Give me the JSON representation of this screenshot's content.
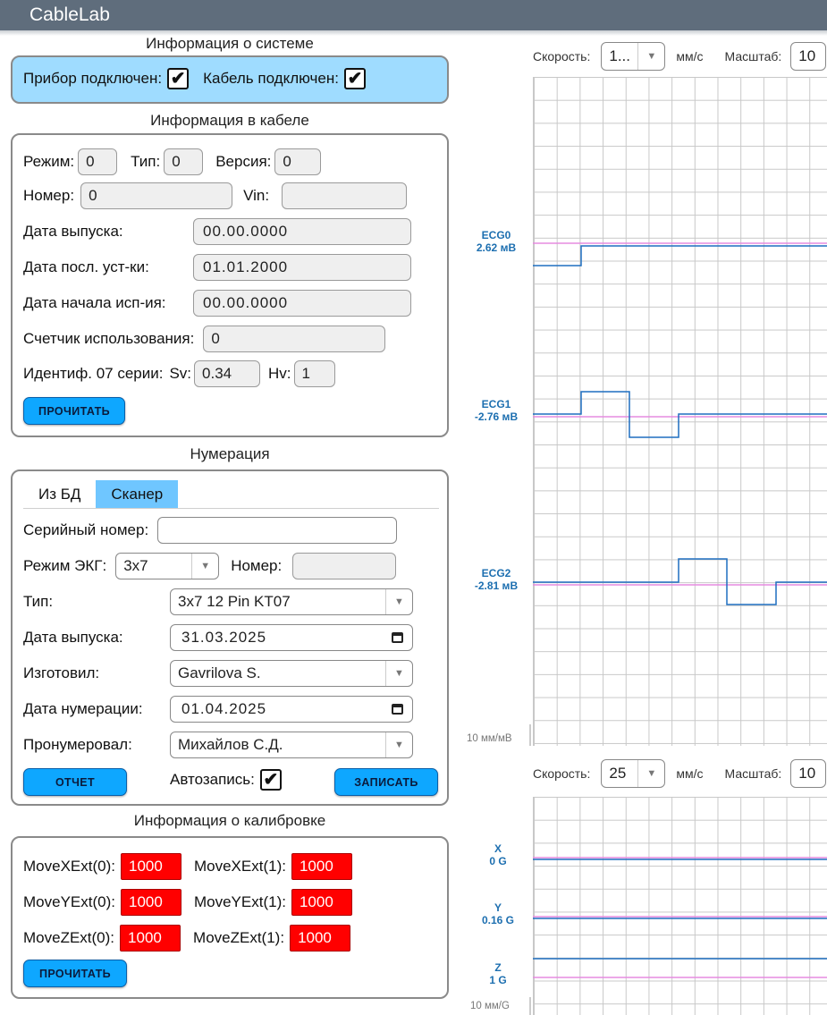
{
  "app": {
    "title": "CableLab"
  },
  "system_info": {
    "title": "Информация о системе",
    "device_label": "Прибор подключен:",
    "device_checked": "✔",
    "cable_label": "Кабель подключен:",
    "cable_checked": "✔"
  },
  "cable_info": {
    "title": "Информация в кабеле",
    "mode_label": "Режим:",
    "mode_value": "0",
    "type_label": "Тип:",
    "type_value": "0",
    "version_label": "Версия:",
    "version_value": "0",
    "number_label": "Номер:",
    "number_value": "0",
    "vin_label": "Vin:",
    "vin_value": "",
    "release_label": "Дата выпуска:",
    "release_value": "00.00.0000",
    "last_install_label": "Дата посл. уст-ки:",
    "last_install_value": "01.01.2000",
    "use_start_label": "Дата начала исп-ия:",
    "use_start_value": "00.00.0000",
    "counter_label": "Счетчик использования:",
    "counter_value": "0",
    "ident_label": "Идентиф. 07 серии:",
    "sv_label": "Sv:",
    "sv_value": "0.34",
    "hv_label": "Hv:",
    "hv_value": "1",
    "read_button": "ПРОЧИТАТЬ"
  },
  "numbering": {
    "title": "Нумерация",
    "tabs": [
      "Из БД",
      "Сканер"
    ],
    "active_tab": "Сканер",
    "serial_label": "Серийный номер:",
    "serial_value": "",
    "ecg_mode_label": "Режим ЭКГ:",
    "ecg_mode_value": "3x7",
    "number_label": "Номер:",
    "number_value": "",
    "type_label": "Тип:",
    "type_value": "3x7 12 Pin KT07",
    "release_label": "Дата выпуска:",
    "release_value": "31.03.2025",
    "maker_label": "Изготовил:",
    "maker_value": "Gavrilova S.",
    "numbering_date_label": "Дата нумерации:",
    "numbering_date_value": "01.04.2025",
    "numbered_by_label": "Пронумеровал:",
    "numbered_by_value": "Михайлов С.Д.",
    "report_button": "ОТЧЕТ",
    "autosave_label": "Автозапись:",
    "autosave_checked": "✔",
    "save_button": "ЗАПИСАТЬ"
  },
  "calibration": {
    "title": "Информация о калибровке",
    "items": [
      {
        "label": "MoveXExt(0):",
        "value": "1000"
      },
      {
        "label": "MoveXExt(1):",
        "value": "1000"
      },
      {
        "label": "MoveYExt(0):",
        "value": "1000"
      },
      {
        "label": "MoveYExt(1):",
        "value": "1000"
      },
      {
        "label": "MoveZExt(0):",
        "value": "1000"
      },
      {
        "label": "MoveZExt(1):",
        "value": "1000"
      }
    ],
    "read_button": "ПРОЧИТАТЬ",
    "status_color": "#ff0000"
  },
  "ecg_chart": {
    "speed_label": "Скорость:",
    "speed_value": "1...",
    "speed_unit": "мм/с",
    "scale_label": "Масштаб:",
    "scale_value": "10",
    "scale_note": "10 мм/мВ",
    "channels": [
      {
        "name": "ECG0",
        "value": "2.62 мВ"
      },
      {
        "name": "ECG1",
        "value": "-2.76 мВ"
      },
      {
        "name": "ECG2",
        "value": "-2.81 мВ"
      }
    ],
    "trace_color": "#1f6fc0",
    "baseline_color": "#e58be0"
  },
  "accel_chart": {
    "speed_label": "Скорость:",
    "speed_value": "25",
    "speed_unit": "мм/с",
    "scale_label": "Масштаб:",
    "scale_value": "10",
    "scale_note": "10 мм/G",
    "channels": [
      {
        "name": "X",
        "value": "0 G"
      },
      {
        "name": "Y",
        "value": "0.16 G"
      },
      {
        "name": "Z",
        "value": "1 G"
      }
    ]
  }
}
